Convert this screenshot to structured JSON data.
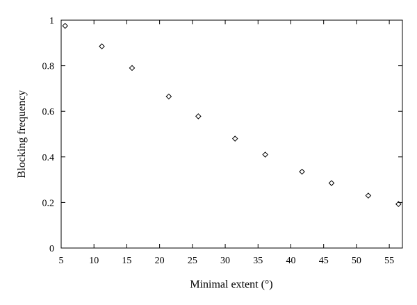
{
  "chart_data": {
    "type": "scatter",
    "title": "",
    "xlabel": "Minimal extent (°)",
    "ylabel": "Blocking frequency",
    "xlim": [
      5,
      57
    ],
    "ylim": [
      0,
      1
    ],
    "xticks": [
      5,
      10,
      15,
      20,
      25,
      30,
      35,
      40,
      45,
      50,
      55
    ],
    "yticks": [
      0,
      0.2,
      0.4,
      0.6,
      0.8,
      1
    ],
    "ytick_labels": [
      "0",
      "0.2",
      "0.4",
      "0.6",
      "0.8",
      "1"
    ],
    "grid": false,
    "marker": "diamond",
    "marker_color": "#000000",
    "series": [
      {
        "x": [
          5.6,
          11.2,
          15.8,
          21.4,
          25.9,
          31.5,
          36.1,
          41.7,
          46.2,
          51.8,
          56.4
        ],
        "y": [
          0.975,
          0.885,
          0.79,
          0.665,
          0.578,
          0.48,
          0.41,
          0.335,
          0.285,
          0.23,
          0.193
        ]
      }
    ]
  }
}
